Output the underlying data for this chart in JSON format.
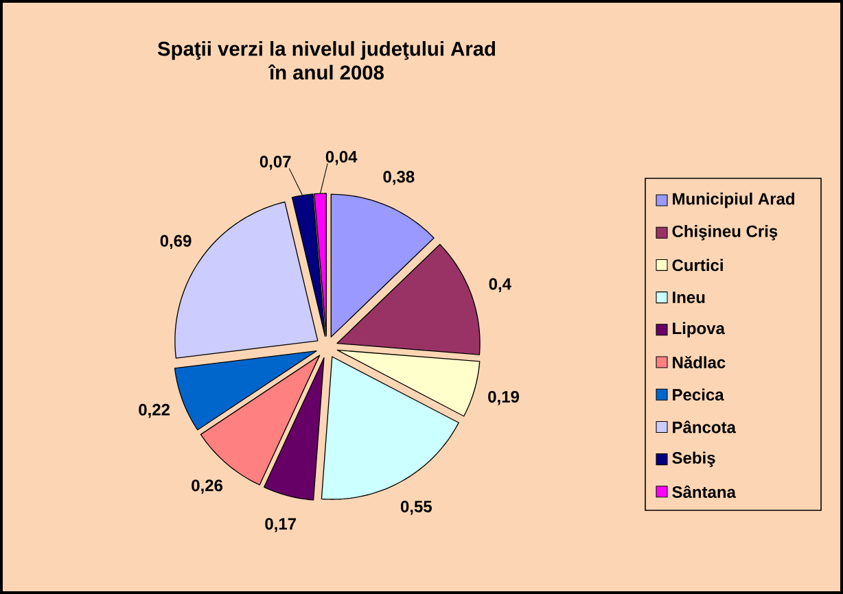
{
  "chart_data": {
    "type": "pie",
    "title": "Spaţii verzi la nivelul judeţului Arad",
    "subtitle": "în anul 2008",
    "categories": [
      "Municipiul Arad",
      "Chişineu Criş",
      "Curtici",
      "Ineu",
      "Lipova",
      "Nădlac",
      "Pecica",
      "Pâncota",
      "Sebiş",
      "Sântana"
    ],
    "values": [
      0.38,
      0.4,
      0.19,
      0.55,
      0.17,
      0.26,
      0.22,
      0.69,
      0.07,
      0.04
    ],
    "value_labels": [
      "0,38",
      "0,4",
      "0,19",
      "0,55",
      "0,17",
      "0,26",
      "0,22",
      "0,69",
      "0,07",
      "0,04"
    ],
    "colors": [
      "#9999ff",
      "#993366",
      "#ffffcc",
      "#ccffff",
      "#660066",
      "#ff8080",
      "#0066cc",
      "#ccccff",
      "#000080",
      "#ff00ff"
    ],
    "legend": "right"
  }
}
